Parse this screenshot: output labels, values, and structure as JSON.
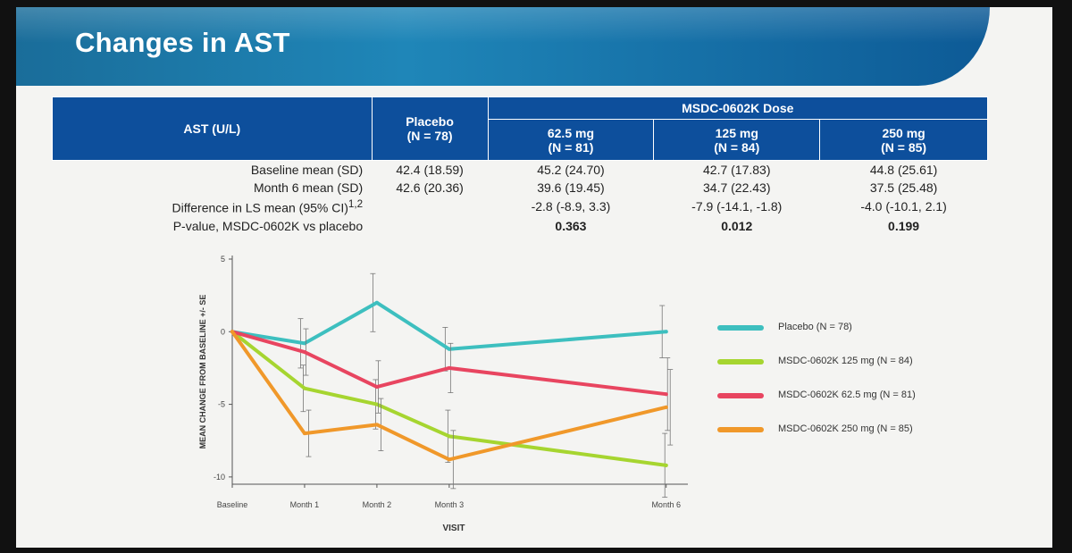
{
  "slide": {
    "title": "Changes in AST"
  },
  "table": {
    "header": {
      "corner": "AST (U/L)",
      "placebo_name": "Placebo",
      "placebo_n": "(N = 78)",
      "dose_group": "MSDC-0602K Dose",
      "doses": [
        {
          "name": "62.5 mg",
          "n": "(N = 81)"
        },
        {
          "name": "125 mg",
          "n": "(N = 84)"
        },
        {
          "name": "250 mg",
          "n": "(N = 85)"
        }
      ]
    },
    "rows": [
      {
        "label": "Baseline mean (SD)",
        "values": [
          "42.4 (18.59)",
          "45.2 (24.70)",
          "42.7 (17.83)",
          "44.8 (25.61)"
        ]
      },
      {
        "label": "Month 6 mean (SD)",
        "values": [
          "42.6 (20.36)",
          "39.6 (19.45)",
          "34.7 (22.43)",
          "37.5 (25.48)"
        ]
      },
      {
        "label": "Difference in LS mean (95% CI)",
        "sup": "1,2",
        "values": [
          "",
          "-2.8 (-8.9, 3.3)",
          "-7.9 (-14.1, -1.8)",
          "-4.0 (-10.1, 2.1)"
        ]
      },
      {
        "label": "P-value, MSDC-0602K vs placebo",
        "values": [
          "",
          "0.363",
          "0.012",
          "0.199"
        ]
      }
    ]
  },
  "chart_data": {
    "type": "line",
    "xlabel": "VISIT",
    "ylabel": "MEAN CHANGE FROM BASELINE +/- SE",
    "categories": [
      "Baseline",
      "Month 1",
      "Month 2",
      "Month 3",
      "Month 6"
    ],
    "ylim": [
      -10.5,
      5
    ],
    "yticks": [
      5,
      0,
      -5,
      -10
    ],
    "grid": false,
    "legend_position": "right",
    "series": [
      {
        "name": "Placebo (N = 78)",
        "color": "#3dbfbf",
        "values": [
          0,
          -0.8,
          2.0,
          -1.2,
          0.0
        ],
        "se": [
          0,
          1.7,
          2.0,
          1.5,
          1.8
        ]
      },
      {
        "name": "MSDC-0602K 125 mg (N = 84)",
        "color": "#a6d530",
        "values": [
          0,
          -3.9,
          -5.0,
          -7.2,
          -9.2
        ],
        "se": [
          0,
          1.6,
          1.7,
          1.8,
          2.2
        ]
      },
      {
        "name": "MSDC-0602K 62.5 mg (N = 81)",
        "color": "#e84560",
        "values": [
          0,
          -1.4,
          -3.8,
          -2.5,
          -4.3
        ],
        "se": [
          0,
          1.6,
          1.8,
          1.7,
          2.5
        ]
      },
      {
        "name": "MSDC-0602K 250 mg (N = 85)",
        "color": "#f0982a",
        "values": [
          0,
          -7.0,
          -6.4,
          -8.8,
          -5.2
        ],
        "se": [
          0,
          1.6,
          1.8,
          2.0,
          2.6
        ]
      }
    ]
  }
}
